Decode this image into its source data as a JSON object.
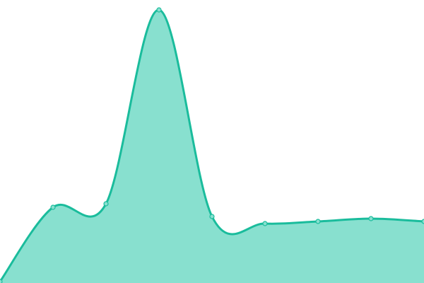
{
  "chart_data": {
    "type": "area",
    "title": "",
    "xlabel": "",
    "ylabel": "",
    "x": [
      0,
      1,
      2,
      3,
      4,
      5,
      6,
      7,
      8
    ],
    "values": [
      2,
      107,
      112,
      386,
      94,
      84,
      87,
      91,
      87
    ],
    "ylim": [
      0,
      400
    ],
    "grid": false,
    "axes_visible": false,
    "legend": "none",
    "smooth": true,
    "colors": {
      "line": "#1abc9c",
      "fill": "#88e0cf",
      "point_fill": "#88e0cf"
    }
  }
}
